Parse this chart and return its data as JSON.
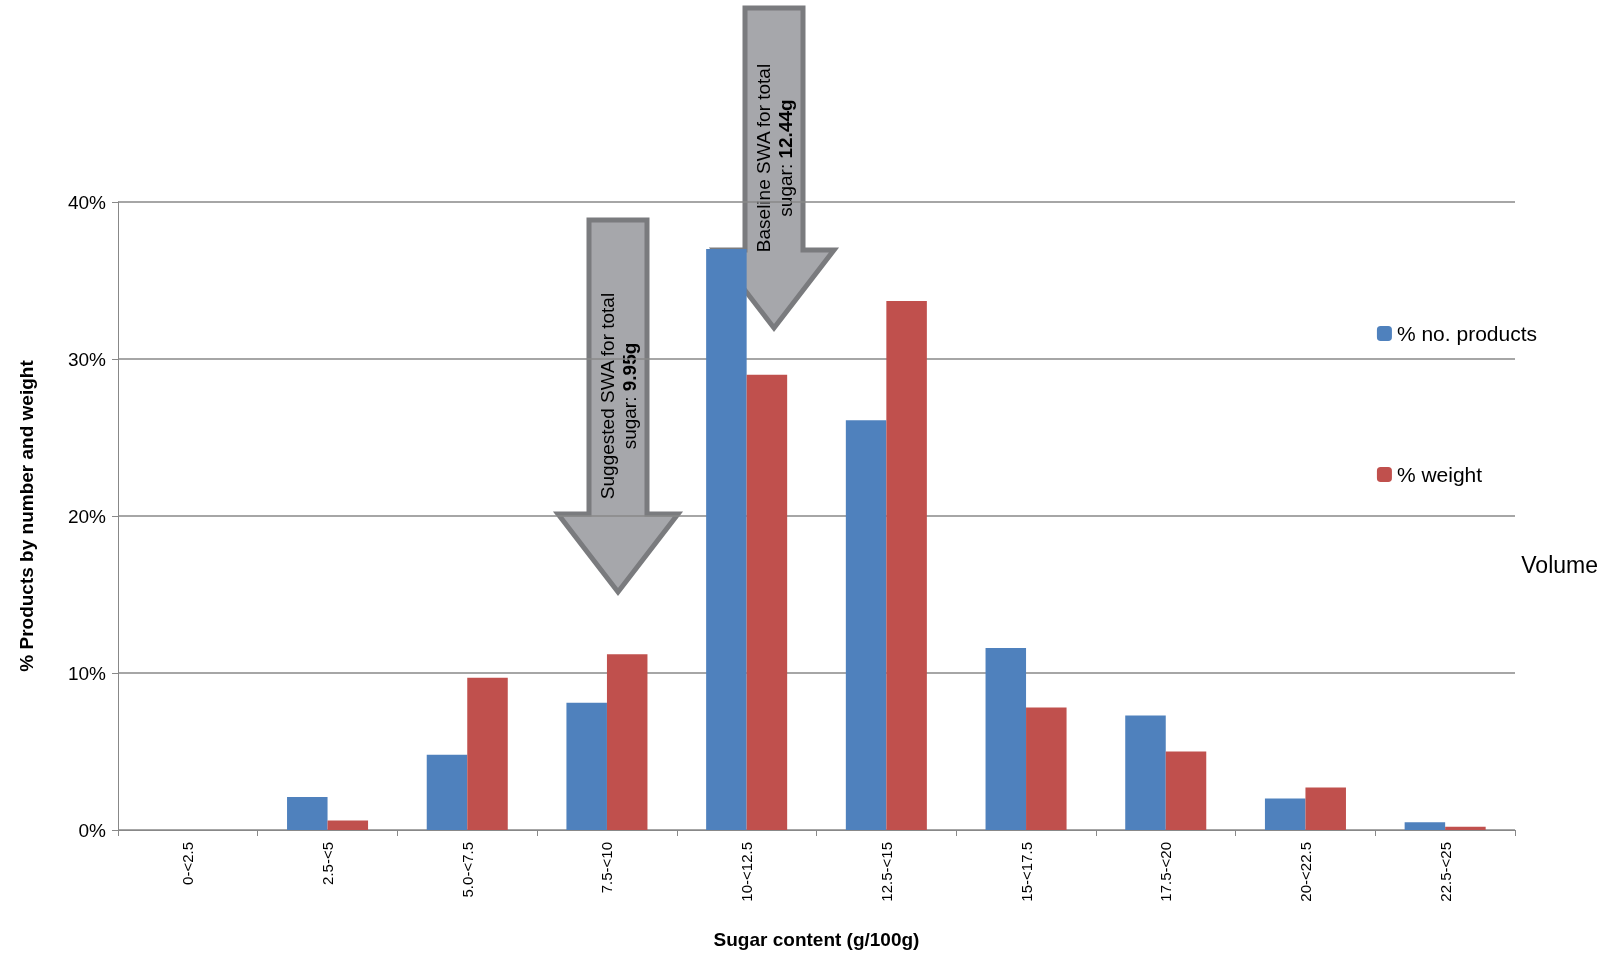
{
  "chart_data": {
    "type": "bar",
    "xlabel": "Sugar content (g/100g)",
    "ylabel": "% Products by number and weight",
    "categories": [
      "0-<2.5",
      "2.5-<5",
      "5.0-<7.5",
      "7.5-<10",
      "10-<12.5",
      "12.5-<15",
      "15-<17.5",
      "17.5-<20",
      "20-<22.5",
      "22.5-<25"
    ],
    "series": [
      {
        "name": "% no. products",
        "color": "#4f81bd",
        "values": [
          0,
          2.1,
          4.8,
          8.1,
          37,
          26.1,
          11.6,
          7.3,
          2.0,
          0.5
        ]
      },
      {
        "name": "% weight",
        "color": "#c0504d",
        "values": [
          0,
          0.6,
          9.7,
          11.2,
          29.0,
          33.7,
          7.8,
          5.0,
          2.7,
          0.2
        ]
      }
    ],
    "ylim": [
      0,
      40
    ],
    "yticks": [
      {
        "value": 0,
        "label": "0%"
      },
      {
        "value": 10,
        "label": "10%"
      },
      {
        "value": 20,
        "label": "20%"
      },
      {
        "value": 30,
        "label": "30%"
      },
      {
        "value": 40,
        "label": "40%"
      }
    ],
    "grid": "y",
    "legend": "right",
    "annotations": [
      "Suggested SWA for total sugar: 9.95g",
      "Baseline SWA for total sugar: 12.44g",
      "Volume"
    ]
  }
}
